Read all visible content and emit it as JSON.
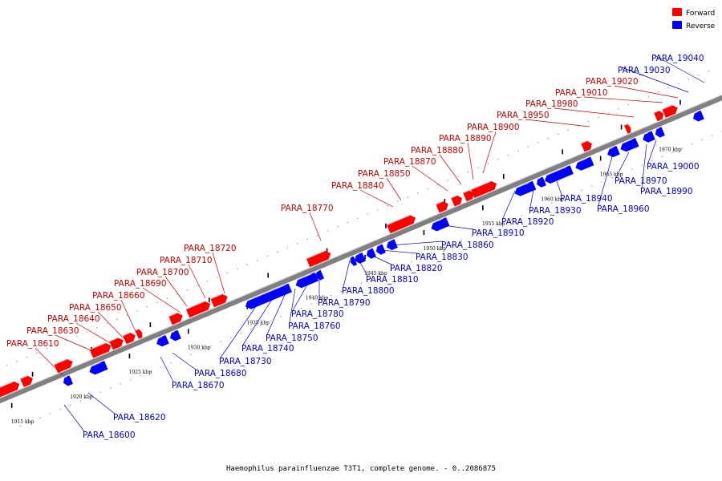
{
  "caption": "Haemophilus parainfluenzae T3T1, complete genome. - 0..2086875",
  "legend": {
    "forward": {
      "label": "Forward",
      "color": "#ff0000"
    },
    "reverse": {
      "label": "Reverse",
      "color": "#0000ff"
    }
  },
  "colors": {
    "forward": "#ff0000",
    "reverse": "#0000ff",
    "forward_label": "#cc0000",
    "reverse_label": "#0000cc",
    "backbone": "#808080"
  },
  "ticks": [
    "1915 kbp",
    "1920 kbp",
    "1925 kbp",
    "1930 kbp",
    "1935 kbp",
    "1940 kbp",
    "1945 kbp",
    "1950 kbp",
    "1955 kbp",
    "1960 kbp",
    "1965 kbp",
    "1970 kbp"
  ],
  "forward_labels": [
    "PARA_18610",
    "PARA_18630",
    "PARA_18640",
    "PARA_18650",
    "PARA_18660",
    "PARA_18690",
    "PARA_18700",
    "PARA_18710",
    "PARA_18720",
    "PARA_18770",
    "PARA_18840",
    "PARA_18850",
    "PARA_18870",
    "PARA_18880",
    "PARA_18890",
    "PARA_18900",
    "PARA_18950",
    "PARA_18980",
    "PARA_19010",
    "PARA_19020"
  ],
  "reverse_labels": [
    "PARA_18600",
    "PARA_18620",
    "PARA_18670",
    "PARA_18680",
    "PARA_18730",
    "PARA_18740",
    "PARA_18750",
    "PARA_18760",
    "PARA_18780",
    "PARA_18790",
    "PARA_18800",
    "PARA_18810",
    "PARA_18820",
    "PARA_18830",
    "PARA_18860",
    "PARA_18910",
    "PARA_18920",
    "PARA_18930",
    "PARA_18940",
    "PARA_18960",
    "PARA_18970",
    "PARA_18990",
    "PARA_19000",
    "PARA_19030",
    "PARA_19040"
  ]
}
